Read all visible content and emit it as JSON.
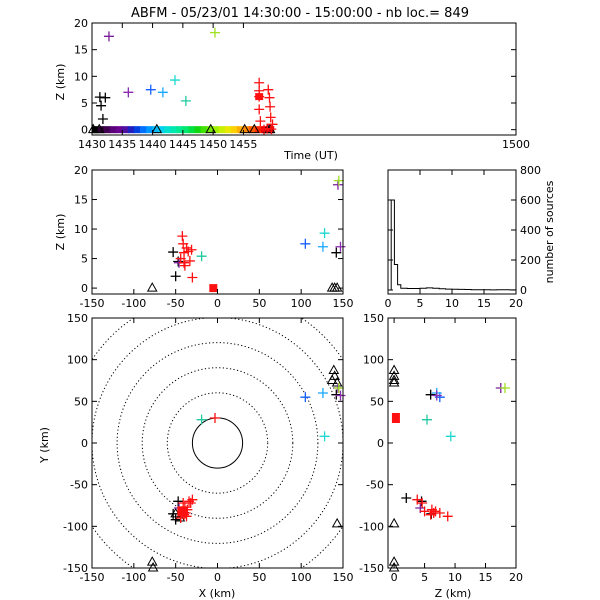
{
  "chart_data": {
    "type": "scatter",
    "title": "ABFM - 05/23/01 14:30:00 - 15:00:00 - nb loc.=    849",
    "panels": {
      "time_height": {
        "xlabel": "Time (UT)",
        "ylabel": "Z (km)",
        "xlim": [
          1430,
          1500
        ],
        "ylim": [
          -1,
          20
        ],
        "xticks": [
          1430,
          1435,
          1440,
          1445,
          1450,
          1455,
          1500
        ],
        "yticks": [
          0,
          5,
          10,
          15,
          20
        ],
        "points": [
          {
            "t": 1431.3,
            "z": 6.1,
            "color": "#000000"
          },
          {
            "t": 1431.5,
            "z": 4.5,
            "color": "#000000"
          },
          {
            "t": 1431.8,
            "z": 2.0,
            "color": "#000000"
          },
          {
            "t": 1432.2,
            "z": 6.0,
            "color": "#000000"
          },
          {
            "t": 1432.8,
            "z": 17.5,
            "color": "#7a1f9c"
          },
          {
            "t": 1436.0,
            "z": 7.0,
            "color": "#8a2bb0"
          },
          {
            "t": 1439.7,
            "z": 7.5,
            "color": "#1560ff"
          },
          {
            "t": 1441.7,
            "z": 7.0,
            "color": "#18a8ff"
          },
          {
            "t": 1443.7,
            "z": 9.3,
            "color": "#20d8d0"
          },
          {
            "t": 1445.5,
            "z": 5.4,
            "color": "#20c8a0"
          },
          {
            "t": 1450.3,
            "z": 18.2,
            "color": "#a0e020"
          },
          {
            "t": 1457.6,
            "z": 8.8,
            "color": "#ff1010"
          },
          {
            "t": 1457.6,
            "z": 7.3,
            "color": "#ff1010"
          },
          {
            "t": 1457.6,
            "z": 6.2,
            "color": "#ff1010"
          },
          {
            "t": 1457.6,
            "z": 3.8,
            "color": "#ff1010"
          },
          {
            "t": 1457.8,
            "z": 1.6,
            "color": "#ff1010"
          },
          {
            "t": 1458.4,
            "z": 0.0,
            "color": "#ff1010"
          },
          {
            "t": 1458.9,
            "z": 0.2,
            "color": "#ff1010"
          },
          {
            "t": 1459.1,
            "z": 7.5,
            "color": "#ff1010"
          },
          {
            "t": 1459.3,
            "z": 6.0,
            "color": "#ff1010"
          },
          {
            "t": 1459.4,
            "z": 4.3,
            "color": "#ff1010"
          },
          {
            "t": 1459.5,
            "z": 2.3,
            "color": "#ff1010"
          },
          {
            "t": 1459.8,
            "z": 1.0,
            "color": "#ff1010"
          },
          {
            "t": 1459.6,
            "z": 0.1,
            "color": "#ff1010"
          }
        ],
        "ground_stations_t": [
          1430.2,
          1431.2,
          1440.7,
          1449.6,
          1455.2,
          1456.8,
          1459.0,
          1459.4
        ],
        "time_bar": [
          {
            "t": 1430.5,
            "color": "#000000"
          },
          {
            "t": 1431.5,
            "color": "#2a0030"
          },
          {
            "t": 1432.5,
            "color": "#40004f"
          },
          {
            "t": 1433.5,
            "color": "#5a007a"
          },
          {
            "t": 1434.5,
            "color": "#6a0090"
          },
          {
            "t": 1435.5,
            "color": "#5010a0"
          },
          {
            "t": 1436.5,
            "color": "#2020c0"
          },
          {
            "t": 1437.5,
            "color": "#0040e0"
          },
          {
            "t": 1438.5,
            "color": "#0070ff"
          },
          {
            "t": 1439.5,
            "color": "#0098ff"
          },
          {
            "t": 1440.5,
            "color": "#00b8ff"
          },
          {
            "t": 1441.5,
            "color": "#00d0f0"
          },
          {
            "t": 1442.5,
            "color": "#00e0d0"
          },
          {
            "t": 1443.5,
            "color": "#00e8b0"
          },
          {
            "t": 1444.5,
            "color": "#00e890"
          },
          {
            "t": 1445.5,
            "color": "#00e870"
          },
          {
            "t": 1446.5,
            "color": "#00e040"
          },
          {
            "t": 1447.5,
            "color": "#10d810"
          },
          {
            "t": 1448.5,
            "color": "#40e000"
          },
          {
            "t": 1449.5,
            "color": "#70e800"
          },
          {
            "t": 1450.5,
            "color": "#a0f000"
          },
          {
            "t": 1451.5,
            "color": "#c8f000"
          },
          {
            "t": 1452.5,
            "color": "#e8e800"
          },
          {
            "t": 1453.5,
            "color": "#ffd000"
          },
          {
            "t": 1454.5,
            "color": "#ffb000"
          },
          {
            "t": 1455.5,
            "color": "#ff8800"
          },
          {
            "t": 1456.5,
            "color": "#ff5a00"
          },
          {
            "t": 1457.5,
            "color": "#ff2800"
          },
          {
            "t": 1458.5,
            "color": "#f00000"
          },
          {
            "t": 1459.5,
            "color": "#e00000"
          }
        ]
      },
      "x_height": {
        "ylabel": "Z (km)",
        "xlim": [
          -150,
          150
        ],
        "ylim": [
          -1,
          20
        ],
        "xticks": [
          -150,
          -100,
          -50,
          0,
          50,
          100,
          150
        ],
        "yticks": [
          0,
          5,
          10,
          15,
          20
        ],
        "points": [
          {
            "x": -53,
            "z": 6.1,
            "color": "#000000"
          },
          {
            "x": -47,
            "z": 4.5,
            "color": "#000000"
          },
          {
            "x": -50,
            "z": 2.0,
            "color": "#000000"
          },
          {
            "x": -46,
            "z": 4.3,
            "color": "#7a1f9c"
          },
          {
            "x": -44,
            "z": 5.0,
            "color": "#ff1010"
          },
          {
            "x": -42,
            "z": 8.8,
            "color": "#ff1010"
          },
          {
            "x": -41,
            "z": 7.5,
            "color": "#ff1010"
          },
          {
            "x": -40,
            "z": 6.0,
            "color": "#ff1010"
          },
          {
            "x": -39,
            "z": 3.8,
            "color": "#ff1010"
          },
          {
            "x": -37,
            "z": 6.8,
            "color": "#ff1010"
          },
          {
            "x": -35,
            "z": 6.2,
            "color": "#ff1010"
          },
          {
            "x": -33,
            "z": 4.6,
            "color": "#ff1010"
          },
          {
            "x": -31,
            "z": 6.5,
            "color": "#ff1010"
          },
          {
            "x": -30,
            "z": 1.8,
            "color": "#ff1010"
          },
          {
            "x": -40,
            "z": 4.3,
            "color": "#ff1010"
          },
          {
            "x": -19,
            "z": 5.4,
            "color": "#20c8a0"
          },
          {
            "x": 105,
            "z": 7.5,
            "color": "#1560ff"
          },
          {
            "x": 126,
            "z": 7.0,
            "color": "#18a8ff"
          },
          {
            "x": 128,
            "z": 9.3,
            "color": "#20d8d0"
          },
          {
            "x": 142,
            "z": 6.0,
            "color": "#000000"
          },
          {
            "x": 144,
            "z": 17.5,
            "color": "#7a1f9c"
          },
          {
            "x": 145,
            "z": 18.2,
            "color": "#a0e020"
          },
          {
            "x": 147,
            "z": 7.0,
            "color": "#8a2bb0"
          }
        ],
        "square_points": [
          {
            "x": -5,
            "z": 0.0,
            "color": "#ff1010"
          }
        ],
        "ground_stations_x": [
          -78,
          137,
          140,
          143
        ]
      },
      "altitude_histogram": {
        "xlim": [
          0,
          20
        ],
        "ylim": [
          0,
          800
        ],
        "xticks": [
          0,
          5,
          10,
          15,
          20
        ],
        "yticks": [
          0,
          200,
          400,
          600,
          800
        ],
        "ylabel_right": "number of sources",
        "bins_km": [
          0,
          0.5,
          1,
          1.5,
          2,
          3,
          4,
          5,
          6,
          7,
          8,
          9,
          10,
          11,
          12,
          13,
          14,
          15,
          16,
          17,
          18,
          19,
          20
        ],
        "counts": [
          0,
          600,
          170,
          35,
          12,
          10,
          10,
          12,
          14,
          12,
          8,
          6,
          5,
          4,
          3,
          2,
          2,
          2,
          1,
          2,
          2,
          1,
          0
        ]
      },
      "plan_view": {
        "xlabel": "X (km)",
        "ylabel": "Y (km)",
        "xlim": [
          -150,
          150
        ],
        "ylim": [
          -150,
          150
        ],
        "xticks": [
          -150,
          -100,
          -50,
          0,
          50,
          100,
          150
        ],
        "yticks": [
          -150,
          -100,
          -50,
          0,
          50,
          100,
          150
        ],
        "range_rings_km": [
          30,
          60,
          90,
          120,
          150,
          180
        ],
        "points": [
          {
            "x": -53,
            "y": -85,
            "color": "#000000"
          },
          {
            "x": -47,
            "y": -70,
            "color": "#000000"
          },
          {
            "x": -50,
            "y": -92,
            "color": "#000000"
          },
          {
            "x": -46,
            "y": -78,
            "color": "#7a1f9c"
          },
          {
            "x": -44,
            "y": -90,
            "color": "#ff1010"
          },
          {
            "x": -42,
            "y": -82,
            "color": "#ff1010"
          },
          {
            "x": -40,
            "y": -86,
            "color": "#ff1010"
          },
          {
            "x": -39,
            "y": -77,
            "color": "#ff1010"
          },
          {
            "x": -38,
            "y": -84,
            "color": "#ff1010"
          },
          {
            "x": -36,
            "y": -80,
            "color": "#ff1010"
          },
          {
            "x": -34,
            "y": -70,
            "color": "#ff1010"
          },
          {
            "x": -32,
            "y": -72,
            "color": "#ff1010"
          },
          {
            "x": -30,
            "y": -68,
            "color": "#ff1010"
          },
          {
            "x": -41,
            "y": -72,
            "color": "#ff1010"
          },
          {
            "x": -37,
            "y": -88,
            "color": "#ff1010"
          },
          {
            "x": -19,
            "y": 28,
            "color": "#20c8a0"
          },
          {
            "x": -3,
            "y": 30,
            "color": "#ff1010"
          },
          {
            "x": 105,
            "y": 55,
            "color": "#1560ff"
          },
          {
            "x": 126,
            "y": 60,
            "color": "#18a8ff"
          },
          {
            "x": 128,
            "y": 8,
            "color": "#20d8d0"
          },
          {
            "x": 142,
            "y": 58,
            "color": "#000000"
          },
          {
            "x": 144,
            "y": 66,
            "color": "#7a1f9c"
          },
          {
            "x": 145,
            "y": 66,
            "color": "#a0e020"
          },
          {
            "x": 147,
            "y": 57,
            "color": "#8a2bb0"
          }
        ],
        "ground_stations": [
          {
            "x": -78,
            "y": -143
          },
          {
            "x": -77,
            "y": -150
          },
          {
            "x": -50,
            "y": -85
          },
          {
            "x": -45,
            "y": -90
          },
          {
            "x": 137,
            "y": 75
          },
          {
            "x": 139,
            "y": 87
          },
          {
            "x": 140,
            "y": 80
          },
          {
            "x": 143,
            "y": 72
          },
          {
            "x": 143,
            "y": -97
          }
        ]
      },
      "z_y_view": {
        "xlabel": "Z (km)",
        "xlim": [
          -1,
          20
        ],
        "ylim": [
          -150,
          150
        ],
        "xticks": [
          0,
          5,
          10,
          15,
          20
        ],
        "yticks": [
          -150,
          -100,
          -50,
          0,
          50,
          100,
          150
        ],
        "points": [
          {
            "z": 6.1,
            "y": -85,
            "color": "#000000"
          },
          {
            "z": 4.5,
            "y": -70,
            "color": "#000000"
          },
          {
            "z": 2.0,
            "y": -66,
            "color": "#000000"
          },
          {
            "z": 4.3,
            "y": -78,
            "color": "#7a1f9c"
          },
          {
            "z": 3.8,
            "y": -68,
            "color": "#ff1010"
          },
          {
            "z": 4.6,
            "y": -72,
            "color": "#ff1010"
          },
          {
            "z": 5.0,
            "y": -82,
            "color": "#ff1010"
          },
          {
            "z": 6.0,
            "y": -86,
            "color": "#ff1010"
          },
          {
            "z": 6.2,
            "y": -80,
            "color": "#ff1010"
          },
          {
            "z": 6.5,
            "y": -84,
            "color": "#ff1010"
          },
          {
            "z": 6.8,
            "y": -82,
            "color": "#ff1010"
          },
          {
            "z": 7.5,
            "y": -84,
            "color": "#ff1010"
          },
          {
            "z": 8.8,
            "y": -88,
            "color": "#ff1010"
          },
          {
            "z": 5.4,
            "y": 28,
            "color": "#20c8a0"
          },
          {
            "z": 7.5,
            "y": 55,
            "color": "#1560ff"
          },
          {
            "z": 7.0,
            "y": 60,
            "color": "#18a8ff"
          },
          {
            "z": 9.3,
            "y": 8,
            "color": "#20d8d0"
          },
          {
            "z": 6.0,
            "y": 58,
            "color": "#000000"
          },
          {
            "z": 17.5,
            "y": 66,
            "color": "#7a1f9c"
          },
          {
            "z": 18.2,
            "y": 66,
            "color": "#a0e020"
          },
          {
            "z": 7.0,
            "y": 57,
            "color": "#8a2bb0"
          }
        ],
        "square_points": [
          {
            "z": 0.3,
            "y": 30,
            "color": "#ff1010"
          }
        ],
        "ground_stations_y": [
          -150,
          -143,
          -97,
          72,
          75,
          80,
          87
        ]
      }
    }
  }
}
